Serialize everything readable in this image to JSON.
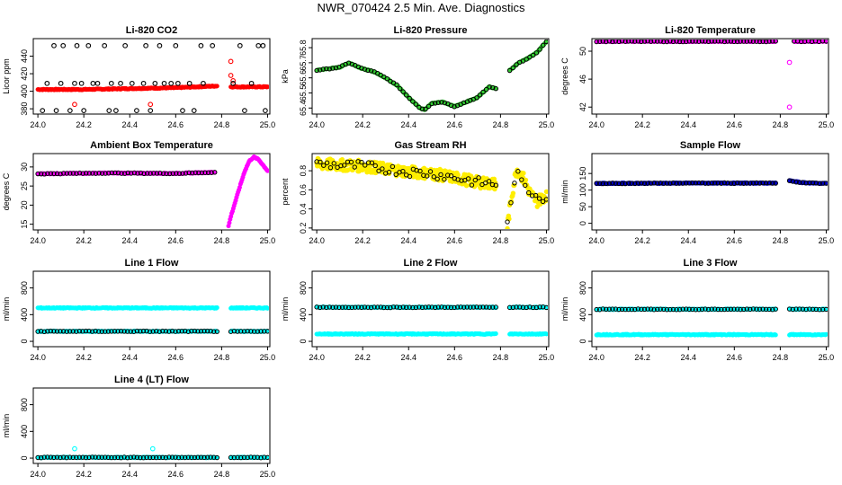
{
  "page_title": "NWR_070424  2.5 Min. Ave. Diagnostics",
  "colors": {
    "red": "#ff0000",
    "black": "#000000",
    "green": "#33cc33",
    "magenta": "#ff00ff",
    "yellow": "#ffee00",
    "blue": "#0000cc",
    "cyan": "#00ffff"
  },
  "chart_data": [
    {
      "id": "co2",
      "type": "scatter",
      "title": "Li-820 CO2",
      "ylabel": "Licor ppm",
      "xlim": [
        23.98,
        25.01
      ],
      "ylim": [
        374,
        460
      ],
      "xticks": [
        24.0,
        24.2,
        24.4,
        24.6,
        24.8,
        25.0
      ],
      "xtick_labels": [
        "24.0",
        "24.2",
        "24.4",
        "24.6",
        "24.8",
        "25.0"
      ],
      "yticks": [
        380,
        400,
        420,
        440
      ],
      "ytick_labels": [
        "380",
        "400",
        "420",
        "440"
      ],
      "series": [
        {
          "name": "raw",
          "style": "dense",
          "color": "red",
          "x": [
            24.0,
            24.2,
            24.4,
            24.6,
            24.78
          ],
          "y": [
            402,
            402,
            403,
            404,
            406
          ],
          "gap_after": 24.78
        },
        {
          "name": "raw-late",
          "style": "dense",
          "color": "red",
          "x": [
            24.84,
            24.9,
            25.0
          ],
          "y": [
            405,
            405,
            405
          ]
        },
        {
          "name": "outliers",
          "style": "points",
          "color": "red",
          "x": [
            24.16,
            24.49,
            24.84,
            24.84,
            24.85
          ],
          "y": [
            385,
            385,
            434,
            418,
            412
          ]
        },
        {
          "name": "reference",
          "style": "points",
          "color": "black",
          "x": [
            24.02,
            24.04,
            24.07,
            24.08,
            24.1,
            24.11,
            24.14,
            24.16,
            24.17,
            24.19,
            24.2,
            24.22,
            24.24,
            24.26,
            24.29,
            24.31,
            24.32,
            24.34,
            24.36,
            24.38,
            24.41,
            24.43,
            24.46,
            24.47,
            24.49,
            24.51,
            24.53,
            24.55,
            24.58,
            24.6,
            24.61,
            24.63,
            24.66,
            24.68,
            24.71,
            24.72,
            24.76,
            24.85,
            24.88,
            24.9,
            24.93,
            24.96,
            24.98,
            24.99
          ],
          "y": [
            378,
            409,
            452,
            378,
            409,
            452,
            378,
            409,
            452,
            409,
            378,
            452,
            409,
            409,
            452,
            378,
            409,
            378,
            409,
            452,
            409,
            378,
            409,
            452,
            378,
            409,
            452,
            409,
            409,
            452,
            409,
            378,
            409,
            378,
            452,
            409,
            452,
            409,
            452,
            378,
            409,
            452,
            452,
            378
          ]
        }
      ]
    },
    {
      "id": "pressure",
      "type": "scatter",
      "title": "Li-820 Pressure",
      "ylabel": "kPa",
      "xlim": [
        23.98,
        25.01
      ],
      "ylim": [
        65.36,
        65.86
      ],
      "xticks": [
        24.0,
        24.2,
        24.4,
        24.6,
        24.8,
        25.0
      ],
      "xtick_labels": [
        "24.0",
        "24.2",
        "24.4",
        "24.6",
        "24.8",
        "25.0"
      ],
      "yticks": [
        65.4,
        65.5,
        65.6,
        65.7,
        65.8
      ],
      "ytick_labels": [
        "65.4",
        "65.5",
        "65.6",
        "65.7",
        "65.8"
      ],
      "series": [
        {
          "name": "pressure",
          "style": "dense",
          "color": "green",
          "overlay": "black",
          "x": [
            24.0,
            24.05,
            24.1,
            24.14,
            24.2,
            24.25,
            24.3,
            24.35,
            24.4,
            24.45,
            24.47,
            24.5,
            24.55,
            24.6,
            24.65,
            24.7,
            24.75,
            24.78
          ],
          "y": [
            65.65,
            65.66,
            65.67,
            65.7,
            65.66,
            65.64,
            65.6,
            65.55,
            65.47,
            65.4,
            65.39,
            65.43,
            65.44,
            65.41,
            65.44,
            65.47,
            65.54,
            65.53
          ]
        },
        {
          "name": "pressure-late",
          "style": "dense",
          "color": "green",
          "overlay": "black",
          "x": [
            24.84,
            24.88,
            24.92,
            24.96,
            25.0
          ],
          "y": [
            65.65,
            65.7,
            65.73,
            65.77,
            65.84
          ]
        }
      ]
    },
    {
      "id": "temperature",
      "type": "scatter",
      "title": "Li-820 Temperature",
      "ylabel": "degrees C",
      "xlim": [
        23.98,
        25.01
      ],
      "ylim": [
        41.0,
        51.8
      ],
      "xticks": [
        24.0,
        24.2,
        24.4,
        24.6,
        24.8,
        25.0
      ],
      "xtick_labels": [
        "24.0",
        "24.2",
        "24.4",
        "24.6",
        "24.8",
        "25.0"
      ],
      "yticks": [
        42,
        46,
        50
      ],
      "ytick_labels": [
        "42",
        "46",
        "50"
      ],
      "series": [
        {
          "name": "temp",
          "style": "dense",
          "color": "magenta",
          "overlay": "black",
          "x": [
            24.0,
            24.78
          ],
          "y": [
            51.4,
            51.4
          ]
        },
        {
          "name": "temp-late",
          "style": "dense",
          "color": "magenta",
          "overlay": "black",
          "x": [
            24.86,
            25.0
          ],
          "y": [
            51.4,
            51.4
          ]
        },
        {
          "name": "temp-outliers",
          "style": "points",
          "color": "magenta",
          "x": [
            24.84,
            24.84
          ],
          "y": [
            48.4,
            42.0
          ]
        }
      ]
    },
    {
      "id": "ambient",
      "type": "scatter",
      "title": "Ambient Box Temperature",
      "ylabel": "degrees C",
      "xlim": [
        23.98,
        25.01
      ],
      "ylim": [
        13.5,
        33.5
      ],
      "xticks": [
        24.0,
        24.2,
        24.4,
        24.6,
        24.8,
        25.0
      ],
      "xtick_labels": [
        "24.0",
        "24.2",
        "24.4",
        "24.6",
        "24.8",
        "25.0"
      ],
      "yticks": [
        15,
        20,
        25,
        30
      ],
      "ytick_labels": [
        "15",
        "20",
        "25",
        "30"
      ],
      "series": [
        {
          "name": "ambient",
          "style": "dense",
          "color": "magenta",
          "overlay": "black",
          "x": [
            24.0,
            24.3,
            24.6,
            24.77
          ],
          "y": [
            28.2,
            28.4,
            28.3,
            28.6
          ]
        },
        {
          "name": "ambient-late",
          "style": "dense",
          "color": "magenta",
          "x": [
            24.83,
            24.84,
            24.86,
            24.88,
            24.9,
            24.92,
            24.94,
            24.96,
            24.98,
            25.0
          ],
          "y": [
            14.5,
            17.0,
            21.0,
            25.0,
            28.8,
            31.5,
            32.6,
            32.0,
            30.5,
            29.0
          ]
        }
      ]
    },
    {
      "id": "rh",
      "type": "scatter",
      "title": "Gas Stream RH",
      "ylabel": "percent",
      "xlim": [
        23.98,
        25.01
      ],
      "ylim": [
        0.18,
        0.98
      ],
      "xticks": [
        24.0,
        24.2,
        24.4,
        24.6,
        24.8,
        25.0
      ],
      "xtick_labels": [
        "24.0",
        "24.2",
        "24.4",
        "24.6",
        "24.8",
        "25.0"
      ],
      "yticks": [
        0.2,
        0.4,
        0.6,
        0.8
      ],
      "ytick_labels": [
        "0.2",
        "0.4",
        "0.6",
        "0.8"
      ],
      "series": [
        {
          "name": "rh",
          "style": "band",
          "color": "yellow",
          "overlay": "black",
          "x": [
            24.0,
            24.1,
            24.2,
            24.3,
            24.4,
            24.5,
            24.6,
            24.7,
            24.78
          ],
          "y": [
            0.87,
            0.86,
            0.85,
            0.82,
            0.79,
            0.77,
            0.73,
            0.68,
            0.66
          ]
        },
        {
          "name": "rh-late",
          "style": "band",
          "color": "yellow",
          "overlay": "black",
          "x": [
            24.83,
            24.85,
            24.87,
            24.9,
            24.93,
            24.96,
            25.0
          ],
          "y": [
            0.22,
            0.55,
            0.82,
            0.72,
            0.56,
            0.48,
            0.55
          ]
        }
      ]
    },
    {
      "id": "sample-flow",
      "type": "scatter",
      "title": "Sample Flow",
      "ylabel": "ml/min",
      "xlim": [
        23.98,
        25.01
      ],
      "ylim": [
        -20,
        210
      ],
      "xticks": [
        24.0,
        24.2,
        24.4,
        24.6,
        24.8,
        25.0
      ],
      "xtick_labels": [
        "24.0",
        "24.2",
        "24.4",
        "24.6",
        "24.8",
        "25.0"
      ],
      "yticks": [
        0,
        50,
        100,
        150
      ],
      "ytick_labels": [
        "0",
        "50",
        "100",
        "150"
      ],
      "series": [
        {
          "name": "flow",
          "style": "dense",
          "color": "blue",
          "overlay": "black",
          "x": [
            24.0,
            24.4,
            24.78
          ],
          "y": [
            120,
            121,
            121
          ]
        },
        {
          "name": "flow-late",
          "style": "dense",
          "color": "blue",
          "overlay": "black",
          "x": [
            24.84,
            24.9,
            25.0
          ],
          "y": [
            128,
            122,
            120
          ]
        }
      ]
    },
    {
      "id": "line1",
      "type": "scatter",
      "title": "Line 1 Flow",
      "ylabel": "ml/min",
      "xlim": [
        23.98,
        25.01
      ],
      "ylim": [
        -80,
        1050
      ],
      "xticks": [
        24.0,
        24.2,
        24.4,
        24.6,
        24.8,
        25.0
      ],
      "xtick_labels": [
        "24.0",
        "24.2",
        "24.4",
        "24.6",
        "24.8",
        "25.0"
      ],
      "yticks": [
        0,
        400,
        800
      ],
      "ytick_labels": [
        "0",
        "400",
        "800"
      ],
      "series": [
        {
          "name": "upper",
          "style": "dense",
          "color": "cyan",
          "x": [
            24.0,
            24.78
          ],
          "y": [
            500,
            500
          ]
        },
        {
          "name": "upper-late",
          "style": "dense",
          "color": "cyan",
          "x": [
            24.84,
            25.0
          ],
          "y": [
            500,
            500
          ]
        },
        {
          "name": "lower",
          "style": "dense",
          "color": "cyan",
          "overlay": "black",
          "x": [
            24.0,
            24.78
          ],
          "y": [
            150,
            150
          ]
        },
        {
          "name": "lower-late",
          "style": "dense",
          "color": "cyan",
          "overlay": "black",
          "x": [
            24.84,
            25.0
          ],
          "y": [
            150,
            150
          ]
        }
      ]
    },
    {
      "id": "line2",
      "type": "scatter",
      "title": "Line 2 Flow",
      "ylabel": "ml/min",
      "xlim": [
        23.98,
        25.01
      ],
      "ylim": [
        -80,
        1050
      ],
      "xticks": [
        24.0,
        24.2,
        24.4,
        24.6,
        24.8,
        25.0
      ],
      "xtick_labels": [
        "24.0",
        "24.2",
        "24.4",
        "24.6",
        "24.8",
        "25.0"
      ],
      "yticks": [
        0,
        400,
        800
      ],
      "ytick_labels": [
        "0",
        "400",
        "800"
      ],
      "series": [
        {
          "name": "upper",
          "style": "dense",
          "color": "cyan",
          "overlay": "black",
          "x": [
            24.0,
            24.78
          ],
          "y": [
            510,
            510
          ]
        },
        {
          "name": "upper-late",
          "style": "dense",
          "color": "cyan",
          "overlay": "black",
          "x": [
            24.84,
            25.0
          ],
          "y": [
            510,
            510
          ]
        },
        {
          "name": "lower",
          "style": "dense",
          "color": "cyan",
          "x": [
            24.0,
            24.78
          ],
          "y": [
            110,
            110
          ]
        },
        {
          "name": "lower-late",
          "style": "dense",
          "color": "cyan",
          "x": [
            24.84,
            25.0
          ],
          "y": [
            110,
            110
          ]
        }
      ]
    },
    {
      "id": "line3",
      "type": "scatter",
      "title": "Line 3 Flow",
      "ylabel": "ml/min",
      "xlim": [
        23.98,
        25.01
      ],
      "ylim": [
        -80,
        1050
      ],
      "xticks": [
        24.0,
        24.2,
        24.4,
        24.6,
        24.8,
        25.0
      ],
      "xtick_labels": [
        "24.0",
        "24.2",
        "24.4",
        "24.6",
        "24.8",
        "25.0"
      ],
      "yticks": [
        0,
        400,
        800
      ],
      "ytick_labels": [
        "0",
        "400",
        "800"
      ],
      "series": [
        {
          "name": "upper",
          "style": "dense",
          "color": "cyan",
          "overlay": "black",
          "x": [
            24.0,
            24.78
          ],
          "y": [
            480,
            480
          ]
        },
        {
          "name": "upper-late",
          "style": "dense",
          "color": "cyan",
          "overlay": "black",
          "x": [
            24.84,
            25.0
          ],
          "y": [
            480,
            480
          ]
        },
        {
          "name": "lower",
          "style": "dense",
          "color": "cyan",
          "x": [
            24.0,
            24.78
          ],
          "y": [
            100,
            100
          ]
        },
        {
          "name": "lower-late",
          "style": "dense",
          "color": "cyan",
          "x": [
            24.84,
            25.0
          ],
          "y": [
            100,
            100
          ]
        }
      ]
    },
    {
      "id": "line4",
      "type": "scatter",
      "title": "Line 4 (LT) Flow",
      "ylabel": "ml/min",
      "xlim": [
        23.98,
        25.01
      ],
      "ylim": [
        -80,
        1050
      ],
      "xticks": [
        24.0,
        24.2,
        24.4,
        24.6,
        24.8,
        25.0
      ],
      "xtick_labels": [
        "24.0",
        "24.2",
        "24.4",
        "24.6",
        "24.8",
        "25.0"
      ],
      "yticks": [
        0,
        400,
        800
      ],
      "ytick_labels": [
        "0",
        "400",
        "800"
      ],
      "series": [
        {
          "name": "flow",
          "style": "dense",
          "color": "cyan",
          "overlay": "black",
          "x": [
            24.0,
            24.78
          ],
          "y": [
            10,
            10
          ]
        },
        {
          "name": "flow-late",
          "style": "dense",
          "color": "cyan",
          "overlay": "black",
          "x": [
            24.84,
            25.0
          ],
          "y": [
            10,
            10
          ]
        },
        {
          "name": "spikes",
          "style": "points",
          "color": "cyan",
          "x": [
            24.16,
            24.5
          ],
          "y": [
            140,
            140
          ]
        }
      ]
    }
  ]
}
